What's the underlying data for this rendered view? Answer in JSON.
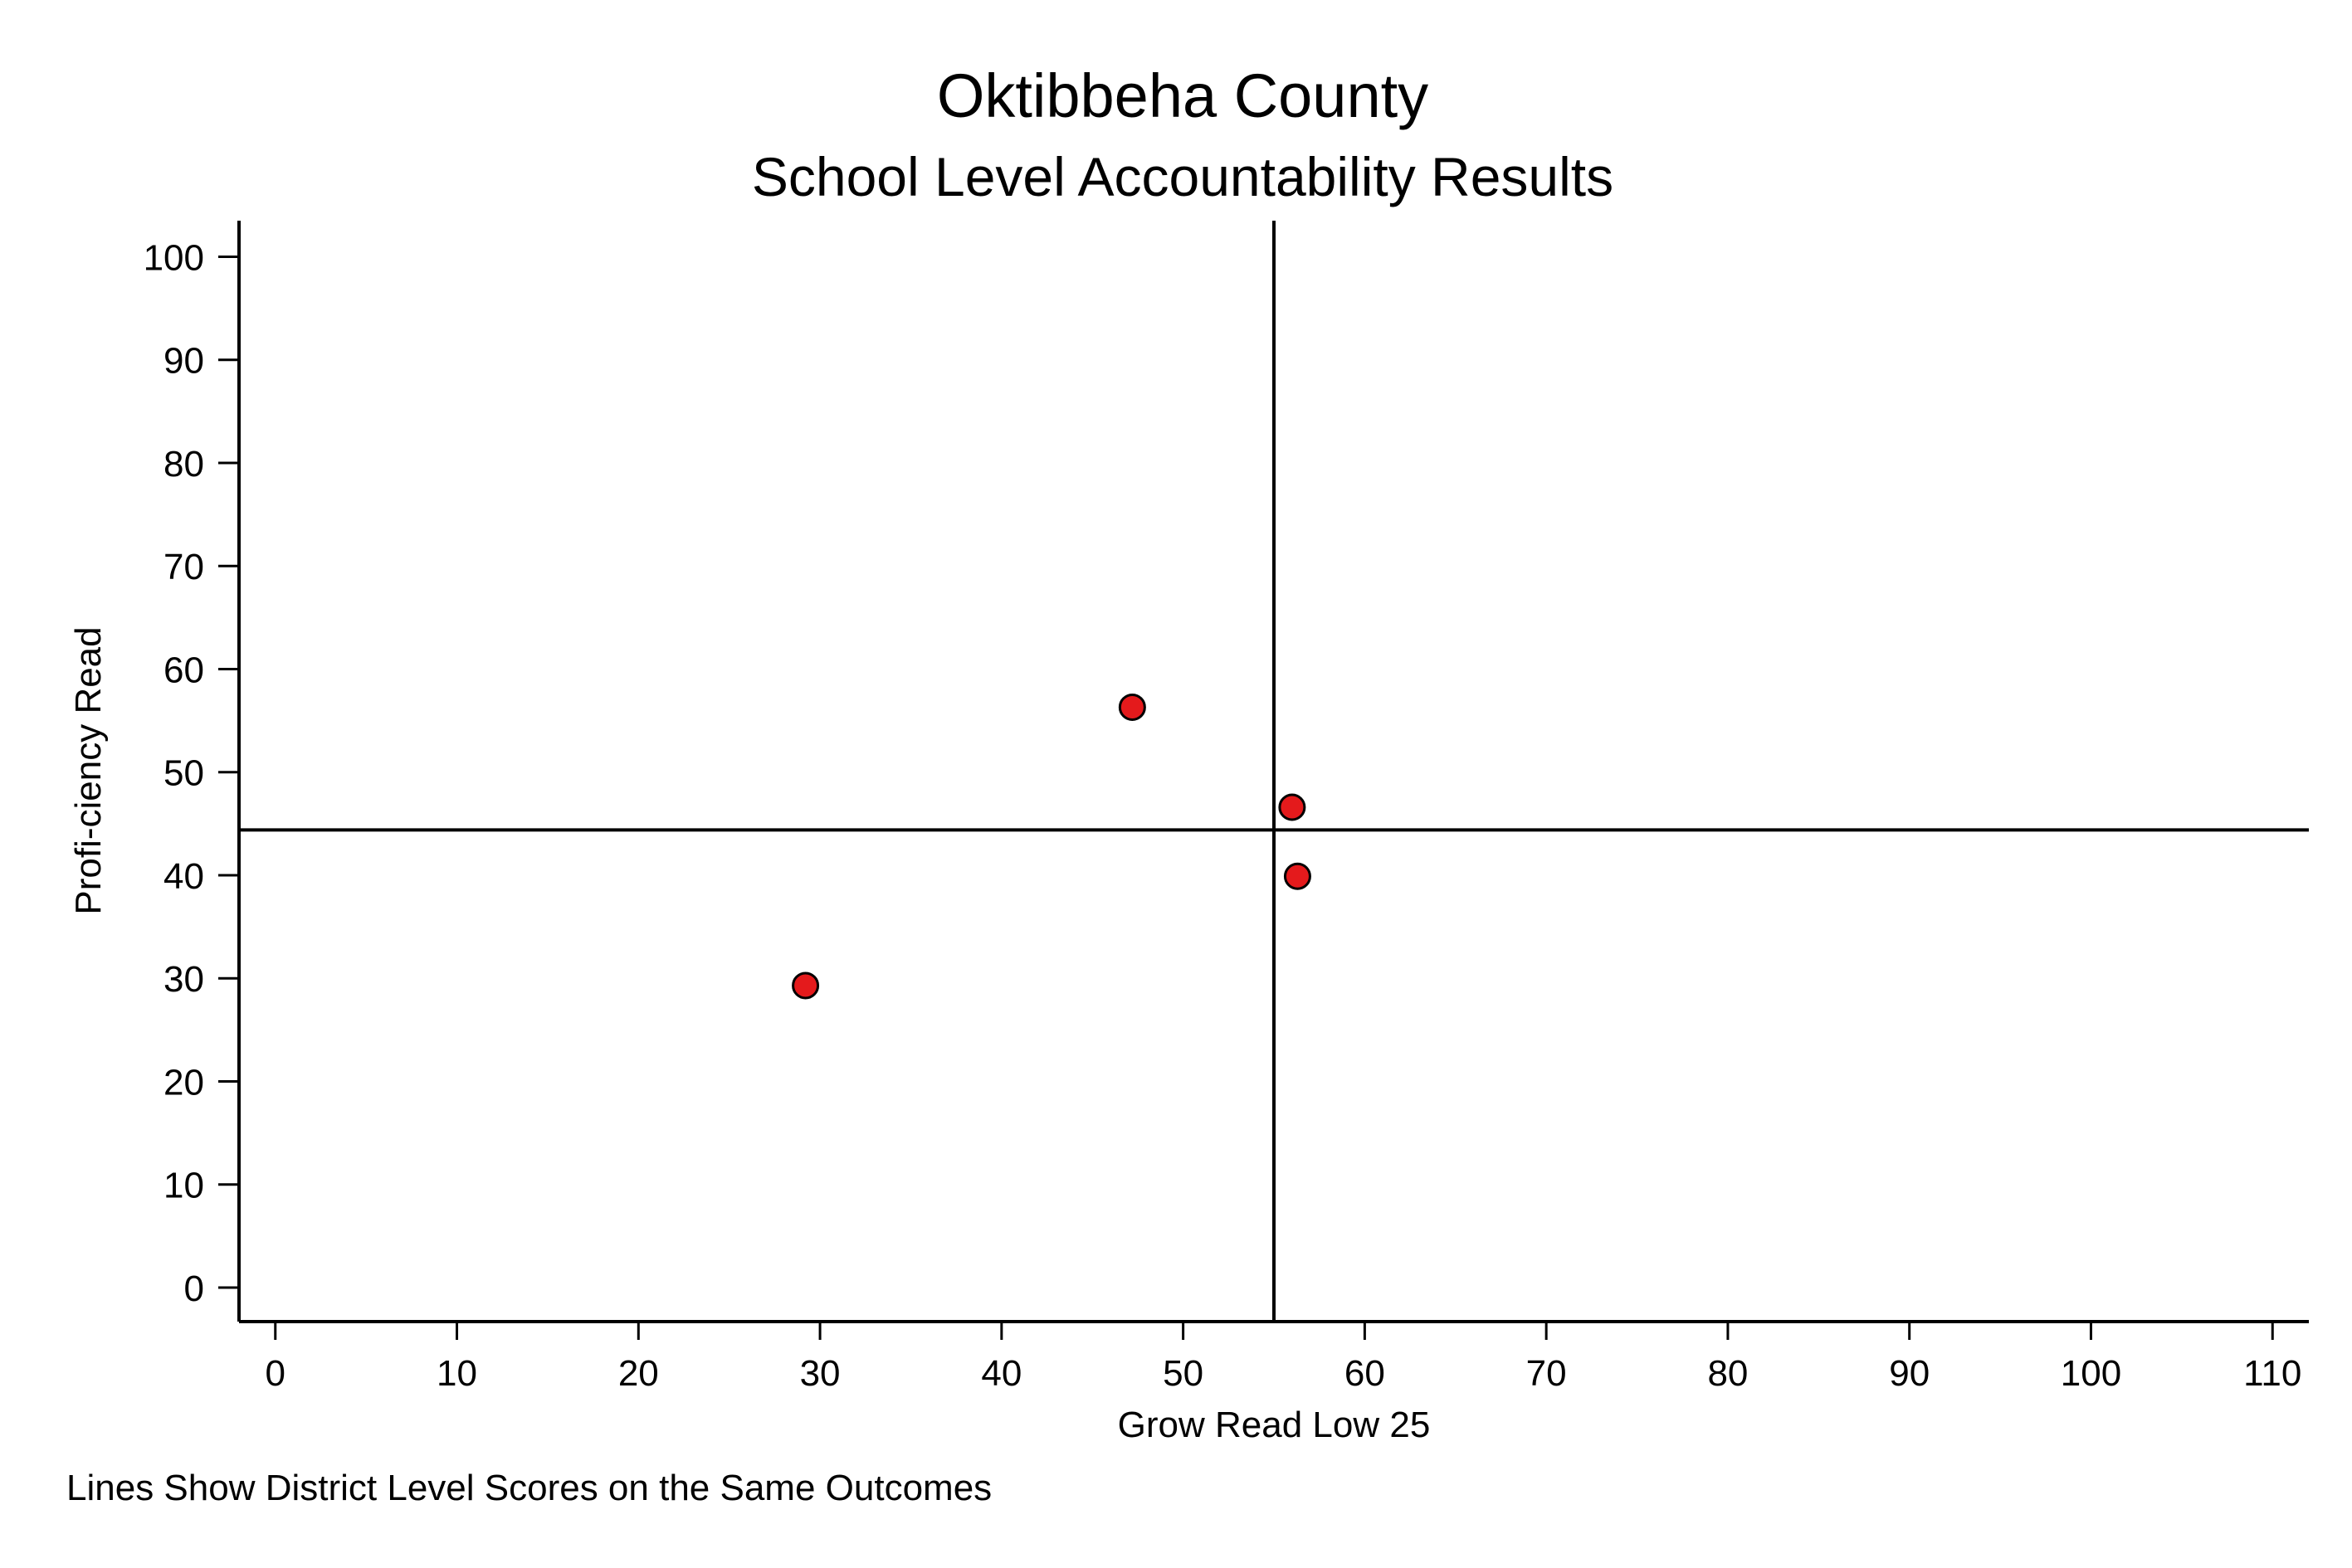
{
  "chart_data": {
    "type": "scatter",
    "title": "Oktibbeha County",
    "subtitle": "School Level Accountability Results",
    "xlabel": "Grow Read Low 25",
    "ylabel": "Profi-ciency Read",
    "note": "Lines Show District Level Scores on the Same Outcomes",
    "xlim": [
      -2,
      112
    ],
    "ylim": [
      -3.3,
      103.5
    ],
    "xticks": [
      0,
      10,
      20,
      30,
      40,
      50,
      60,
      70,
      80,
      90,
      100,
      110
    ],
    "yticks": [
      0,
      10,
      20,
      30,
      40,
      50,
      60,
      70,
      80,
      90,
      100
    ],
    "reference_lines": {
      "x": 55,
      "y": 44.4
    },
    "grid": false,
    "legend": "none",
    "points": [
      {
        "x": 47.2,
        "y": 56.3
      },
      {
        "x": 56.0,
        "y": 46.6
      },
      {
        "x": 56.3,
        "y": 39.9
      },
      {
        "x": 29.2,
        "y": 29.3
      }
    ],
    "colors": {
      "marker_fill": "#e41a1c",
      "marker_stroke": "#000000",
      "line": "#000000"
    }
  }
}
